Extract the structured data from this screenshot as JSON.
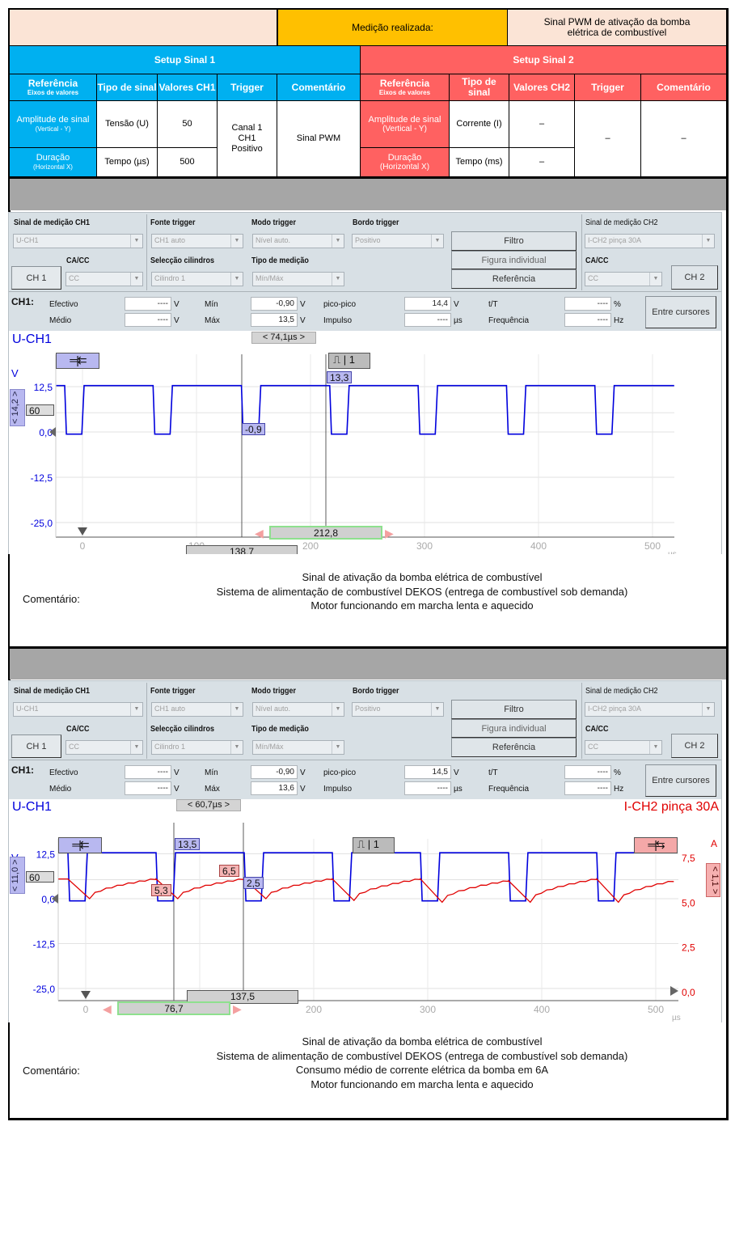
{
  "header": {
    "measurement_label": "Medição realizada:",
    "measurement_value": "Sinal PWM de ativação da bomba elétrica de combustível",
    "colors": {
      "pink": "#fbe4d6",
      "orange": "#ffc000",
      "blue": "#00b0f0",
      "red": "#ff6161",
      "band": "#a6a6a6"
    }
  },
  "setup1": {
    "title": "Setup Sinal 1",
    "columns": [
      {
        "label": "Referência",
        "sub": "Eixos de valores"
      },
      {
        "label": "Tipo de sinal"
      },
      {
        "label": "Valores CH1"
      },
      {
        "label": "Trigger"
      },
      {
        "label": "Comentário"
      }
    ],
    "rows": [
      {
        "ref": "Amplitude de sinal",
        "ref_sub": "(Vertical - Y)",
        "type": "Tensão (U)",
        "value": "50"
      },
      {
        "ref": "Duração",
        "ref_sub": "(Horizontal X)",
        "type": "Tempo (µs)",
        "value": "500"
      }
    ],
    "trigger": "Canal 1 CH1 Positivo",
    "comment": "Sinal PWM"
  },
  "setup2": {
    "title": "Setup Sinal 2",
    "columns": [
      {
        "label": "Referência",
        "sub": "Eixos de valores"
      },
      {
        "label": "Tipo de sinal"
      },
      {
        "label": "Valores CH2"
      },
      {
        "label": "Trigger"
      },
      {
        "label": "Comentário"
      }
    ],
    "rows": [
      {
        "ref": "Amplitude de sinal",
        "ref_sub": "(Vertical - Y)",
        "type": "Corrente (I)",
        "value": "–"
      },
      {
        "ref": "Duração",
        "ref_sub": "(Horizontal X)",
        "type": "Tempo (ms)",
        "value": "–"
      }
    ],
    "trigger": "–",
    "comment": "–"
  },
  "scopes": [
    {
      "controls": {
        "ch1_signal_label": "Sinal de medição CH1",
        "ch1_signal": "U-CH1",
        "trigger_source_label": "Fonte trigger",
        "trigger_source": "CH1 auto",
        "trigger_mode_label": "Modo trigger",
        "trigger_mode": "Nível auto.",
        "trigger_edge_label": "Bordo trigger",
        "trigger_edge": "Positivo",
        "filter_button": "Filtro",
        "single_figure_button": "Figura individual",
        "reference_button": "Referência",
        "ch2_signal_label": "Sinal de medição CH2",
        "ch2_signal": "I-CH2 pinça 30A",
        "ch1_acdc_label": "CA/CC",
        "ch1_acdc": "CC",
        "ch1_button": "CH 1",
        "cylinder_label": "Selecção cilindros",
        "cylinder": "Cilindro 1",
        "meas_type_label": "Tipo de medição",
        "meas_type": "Mín/Máx",
        "ch2_acdc_label": "CA/CC",
        "ch2_acdc": "CC",
        "ch2_button": "CH 2"
      },
      "measurements": {
        "channel": "CH1:",
        "effective_label": "Efectivo",
        "effective": "----",
        "effective_unit": "V",
        "mean_label": "Médio",
        "mean": "----",
        "mean_unit": "V",
        "min_label": "Mín",
        "min": "-0,90",
        "min_unit": "V",
        "max_label": "Máx",
        "max": "13,5",
        "max_unit": "V",
        "pp_label": "pico-pico",
        "pp": "14,4",
        "pp_unit": "V",
        "pulse_label": "Impulso",
        "pulse": "----",
        "pulse_unit": "µs",
        "tT_label": "t/T",
        "tT": "----",
        "tT_unit": "%",
        "freq_label": "Frequência",
        "freq": "----",
        "freq_unit": "Hz",
        "between_cursors_button": "Entre cursores"
      },
      "chart": {
        "ch1_title": "U-CH1",
        "ch2_title": "",
        "delta": "< 74,1µs >",
        "left_unit": "V",
        "right_unit": "",
        "y_ticks": [
          "12,5",
          "0,0",
          "-12,5",
          "-25,0"
        ],
        "y_tick_values": [
          12.5,
          0,
          -12.5,
          -25
        ],
        "right_ticks": [],
        "right_tick_values": [],
        "x_ticks": [
          "0",
          "100",
          "200",
          "300",
          "400",
          "500"
        ],
        "x_tick_values": [
          0,
          100,
          200,
          300,
          400,
          500
        ],
        "x_unit": "µs",
        "y_scale_label": "< 14,2 >",
        "right_scale_label": "",
        "level_label": "60",
        "trigger_channel": "1",
        "cursor_a_time": "138,7",
        "cursor_b_time": "212,8",
        "cursor_values": [
          {
            "text": "13,3",
            "ch": 1
          },
          {
            "text": "-0,9",
            "ch": 1
          }
        ],
        "colors": {
          "ch1": "#0000dd",
          "ch2": "#e00000"
        }
      },
      "chart_data": {
        "type": "line",
        "xlim": [
          -23,
          519
        ],
        "ylim": [
          -28,
          20
        ],
        "series": [
          {
            "name": "U-CH1",
            "kind": "pwm",
            "high": 12.8,
            "low": -0.6,
            "period": 77.5,
            "first_fall": -15.6,
            "low_width": 15
          }
        ],
        "cursors_us": [
          138.7,
          212.8
        ]
      },
      "comment_label": "Comentário:",
      "comment_lines": [
        "Sinal de ativação da bomba elétrica de combustível",
        "Sistema de alimentação de combustível DEKOS (entrega de combustível sob demanda)",
        "Motor funcionando em marcha lenta e aquecido"
      ]
    },
    {
      "controls": {
        "ch1_signal_label": "Sinal de medição CH1",
        "ch1_signal": "U-CH1",
        "trigger_source_label": "Fonte trigger",
        "trigger_source": "CH1 auto",
        "trigger_mode_label": "Modo trigger",
        "trigger_mode": "Nível auto.",
        "trigger_edge_label": "Bordo trigger",
        "trigger_edge": "Positivo",
        "filter_button": "Filtro",
        "single_figure_button": "Figura individual",
        "reference_button": "Referência",
        "ch2_signal_label": "Sinal de medição CH2",
        "ch2_signal": "I-CH2 pinça 30A",
        "ch1_acdc_label": "CA/CC",
        "ch1_acdc": "CC",
        "ch1_button": "CH 1",
        "cylinder_label": "Selecção cilindros",
        "cylinder": "Cilindro 1",
        "meas_type_label": "Tipo de medição",
        "meas_type": "Mín/Máx",
        "ch2_acdc_label": "CA/CC",
        "ch2_acdc": "CC",
        "ch2_button": "CH 2"
      },
      "measurements": {
        "channel": "CH1:",
        "effective_label": "Efectivo",
        "effective": "----",
        "effective_unit": "V",
        "mean_label": "Médio",
        "mean": "----",
        "mean_unit": "V",
        "min_label": "Mín",
        "min": "-0,90",
        "min_unit": "V",
        "max_label": "Máx",
        "max": "13,6",
        "max_unit": "V",
        "pp_label": "pico-pico",
        "pp": "14,5",
        "pp_unit": "V",
        "pulse_label": "Impulso",
        "pulse": "----",
        "pulse_unit": "µs",
        "tT_label": "t/T",
        "tT": "----",
        "tT_unit": "%",
        "freq_label": "Frequência",
        "freq": "----",
        "freq_unit": "Hz",
        "between_cursors_button": "Entre cursores"
      },
      "chart": {
        "ch1_title": "U-CH1",
        "ch2_title": "I-CH2 pinça 30A",
        "delta": "< 60,7µs >",
        "left_unit": "V",
        "right_unit": "A",
        "y_ticks": [
          "12,5",
          "0,0",
          "-12,5",
          "-25,0"
        ],
        "y_tick_values": [
          12.5,
          0,
          -12.5,
          -25
        ],
        "right_ticks": [
          "7,5",
          "5,0",
          "2,5",
          "0,0"
        ],
        "right_tick_values": [
          7.5,
          5,
          2.5,
          0
        ],
        "x_ticks": [
          "0",
          "100",
          "200",
          "300",
          "400",
          "500"
        ],
        "x_tick_values": [
          0,
          100,
          200,
          300,
          400,
          500
        ],
        "x_unit": "µs",
        "y_scale_label": "< 11,0 >",
        "right_scale_label": "< 1,1 >",
        "level_label": "60",
        "trigger_channel": "1",
        "cursor_a_time": "76,7",
        "cursor_b_time": "137,5",
        "cursor_values": [
          {
            "text": "13,5",
            "ch": 1
          },
          {
            "text": "5,3",
            "ch": 2
          },
          {
            "text": "6,5",
            "ch": 2
          },
          {
            "text": "2,5",
            "ch": 1
          }
        ],
        "colors": {
          "ch1": "#0000dd",
          "ch2": "#e00000"
        }
      },
      "chart_data": {
        "type": "line",
        "xlim": [
          -24,
          519
        ],
        "ylim": [
          -29,
          20
        ],
        "right_ylim": [
          -0.2,
          9
        ],
        "series": [
          {
            "name": "U-CH1",
            "kind": "pwm",
            "high": 12.8,
            "low": -0.6,
            "period": 77.3,
            "first_fall": -15.6,
            "low_width": 15
          },
          {
            "name": "I-CH2 pinça 30A",
            "kind": "sawtooth",
            "peaks_A": [
              6.3,
              6.3,
              6.3,
              6.3,
              6.3,
              6.2,
              6.3
            ],
            "troughs_A": [
              5.2,
              5.2,
              5.2,
              5.1,
              5.0,
              5.0,
              5.0
            ]
          }
        ],
        "cursors_us": [
          76.7,
          137.5
        ]
      },
      "comment_label": "Comentário:",
      "comment_lines": [
        "Sinal de ativação da bomba elétrica de combustível",
        "Sistema de alimentação de combustível DEKOS (entrega de combustível sob demanda)",
        "Consumo médio de corrente elétrica da bomba em 6A",
        "Motor funcionando em marcha lenta e aquecido"
      ]
    }
  ]
}
